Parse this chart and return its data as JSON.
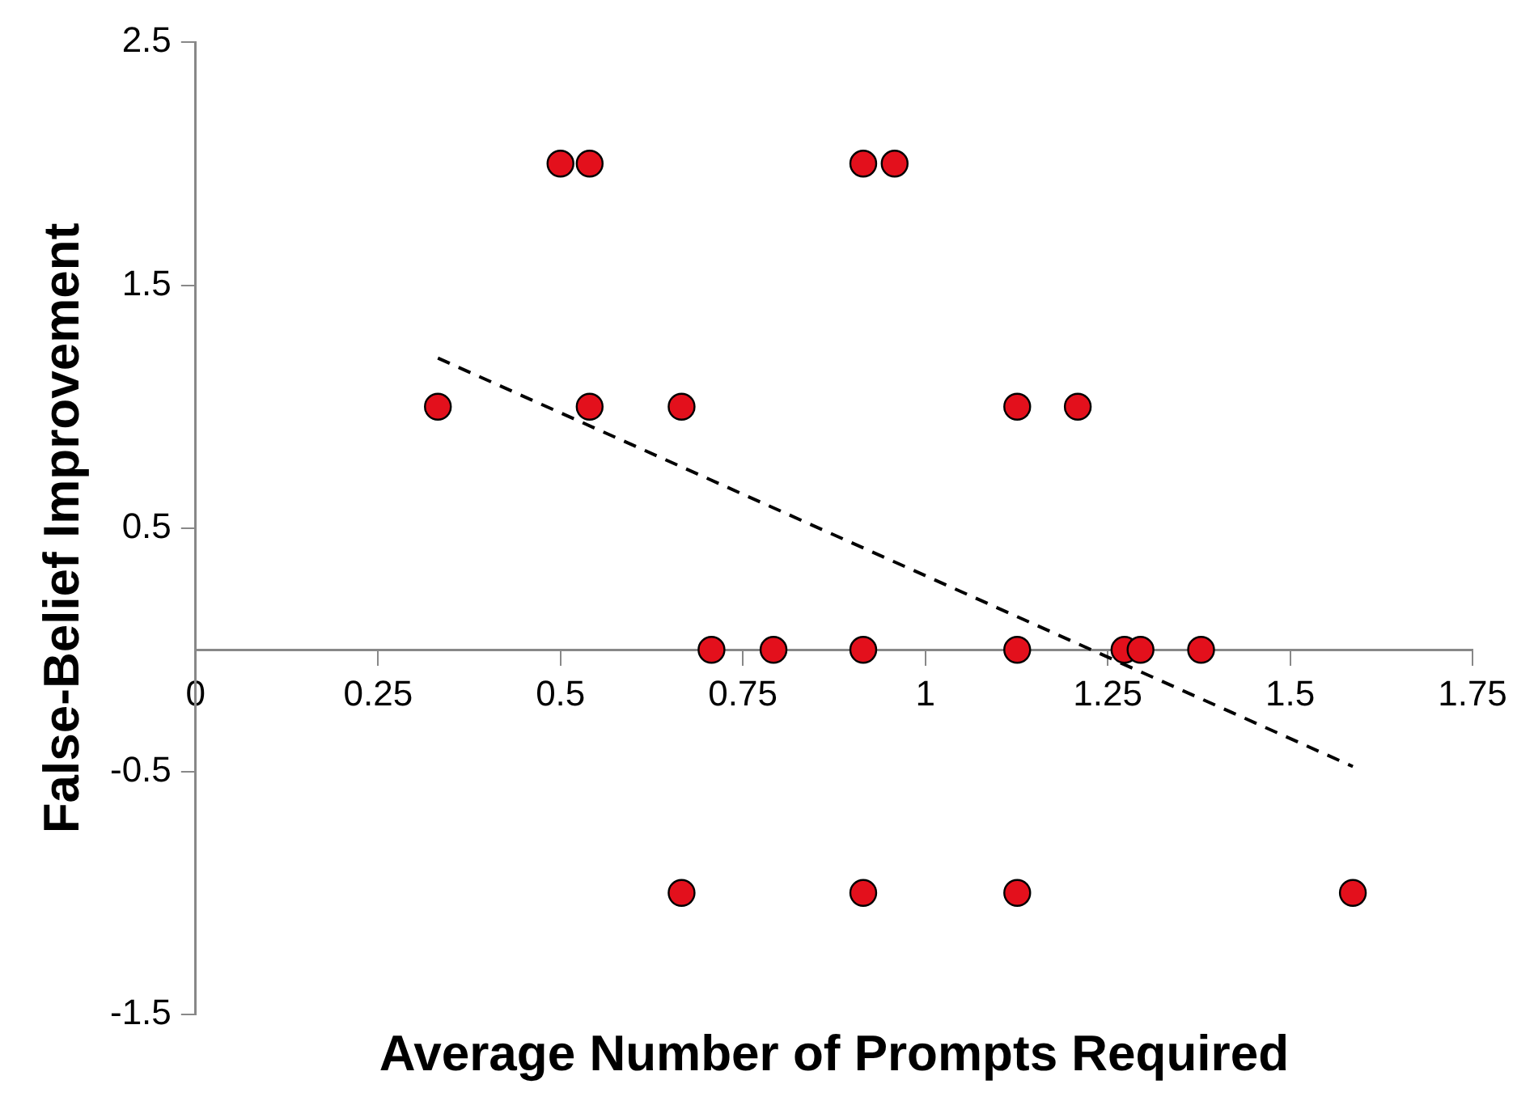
{
  "chart_data": {
    "type": "scatter",
    "xlabel": "Average Number of Prompts Required",
    "ylabel": "False-Belief Improvement",
    "xlim": [
      0,
      1.75
    ],
    "xticks": [
      0,
      0.25,
      0.5,
      0.75,
      1,
      1.25,
      1.5,
      1.75
    ],
    "ylim": [
      -1.5,
      2.5
    ],
    "yticks": [
      -1.5,
      -0.5,
      0.5,
      1.5,
      2.5
    ],
    "grid": false,
    "legend": false,
    "series": [
      {
        "marker": "circle",
        "color": "#e3101c",
        "x": [
          0.5,
          0.54,
          0.915,
          0.958,
          0.332,
          0.54,
          0.666,
          1.126,
          1.209,
          0.707,
          0.792,
          0.915,
          1.126,
          1.273,
          1.295,
          1.378,
          0.666,
          0.915,
          1.126,
          1.586
        ],
        "values": [
          2,
          2,
          2,
          2,
          1,
          1,
          1,
          1,
          1,
          0,
          0,
          0,
          0,
          0,
          0,
          0,
          -1,
          -1,
          -1,
          -1
        ]
      },
      {
        "type": "line",
        "marker": "none",
        "color": "#000000",
        "line_style": "dashed",
        "x": [
          0.332,
          1.586
        ],
        "values": [
          1.2,
          -0.48
        ]
      }
    ]
  }
}
